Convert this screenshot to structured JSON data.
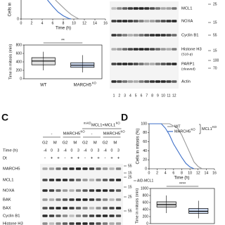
{
  "panel_a": {
    "survival": {
      "type": "line",
      "y_label": "Cells in",
      "x_label": "Time (h)",
      "xlim": [
        0,
        16
      ],
      "xticks": [
        0,
        2,
        4,
        6,
        8,
        10,
        12,
        14,
        16
      ],
      "ylim": [
        0,
        30
      ],
      "yticks": [
        0
      ],
      "series": [
        {
          "color": "#9a9a9a",
          "x": [
            6.5,
            7.5,
            8.5,
            9.5,
            10.5,
            11
          ],
          "values": [
            30,
            22,
            14,
            7,
            2,
            0
          ]
        },
        {
          "color": "#3d6fc8",
          "x": [
            5,
            6,
            7,
            8,
            9,
            9.5
          ],
          "values": [
            30,
            20,
            11,
            5,
            1,
            0
          ]
        }
      ]
    },
    "boxplot": {
      "type": "box",
      "y_label": "Time in mitosis (min)",
      "significance": "**",
      "ylim": [
        0,
        800
      ],
      "yticks": [
        0,
        200,
        400,
        600,
        800
      ],
      "groups": [
        {
          "label": "WT",
          "color": "#888888",
          "stats": [
            200,
            330,
            420,
            500,
            640
          ]
        },
        {
          "label": "MARCH5",
          "sup": "KO",
          "color": "#3d6fc8",
          "stats": [
            150,
            270,
            320,
            380,
            560
          ]
        }
      ]
    }
  },
  "panel_b": {
    "rows": [
      {
        "label": "MCL1"
      },
      {
        "label": "NOXA"
      },
      {
        "label": "Cyclin B1"
      },
      {
        "label": "Histone H3",
        "sublabel": "(S10-p)"
      },
      {
        "label": "PARP1",
        "sublabel": "(cleaved)"
      },
      {
        "label": "Actin"
      }
    ],
    "markers": [
      "25",
      "15",
      "55",
      "15",
      "100",
      "70"
    ],
    "lanes": [
      "1",
      "2",
      "3",
      "4",
      "5",
      "6",
      "7",
      "8",
      "9",
      "10",
      "11",
      "12"
    ]
  },
  "panel_c": {
    "letter": "C",
    "header": {
      "prefix_sup": "mAID",
      "text": "MCL1+MCL1",
      "sup": "KO"
    },
    "conditions": [
      {
        "label": "-"
      },
      {
        "label": "MARCH5",
        "sup": "KO"
      },
      {
        "label": "-"
      },
      {
        "label": "MARCH5",
        "sup": "KO"
      }
    ],
    "phases": [
      "G2",
      "M",
      "G2",
      "M",
      "G2",
      "M",
      "G2",
      "M"
    ],
    "time_label": "Time (h)",
    "times": [
      "-4",
      "0",
      "3",
      "-4",
      "0",
      "3",
      "-4",
      "0",
      "3",
      "-4",
      "0",
      "3"
    ],
    "dt_label": "Dt",
    "dt": [
      "-",
      "+",
      "+",
      "-",
      "+",
      "+",
      "-",
      "+",
      "+",
      "-",
      "+",
      "+"
    ],
    "rows": [
      "MARCH5",
      "MCL1",
      "NOXA",
      "BAK",
      "BAX",
      "Cyclin B1",
      "Histone H3"
    ],
    "markers": [
      "55",
      "15",
      "25",
      "15",
      "25",
      "55"
    ],
    "annotation": "AID-MCL1"
  },
  "panel_d": {
    "letter": "D",
    "legend_group": {
      "label": "MCL1",
      "sup": "KO"
    },
    "survival": {
      "type": "line",
      "y_label": "Cells in mitosis (%)",
      "x_label": "Time (h)",
      "xlim": [
        0,
        16
      ],
      "xticks": [
        0,
        2,
        4,
        6,
        8,
        10,
        12,
        14,
        16
      ],
      "ylim": [
        0,
        100
      ],
      "yticks": [
        0,
        20,
        40,
        60,
        80,
        100
      ],
      "series": [
        {
          "name": "WT",
          "color": "#9a9a9a",
          "x": [
            0,
            5,
            7,
            8,
            9,
            10,
            11,
            12,
            13
          ],
          "values": [
            100,
            100,
            90,
            75,
            55,
            35,
            15,
            5,
            0
          ]
        },
        {
          "name": "MARCH5",
          "sup": "KO",
          "color": "#3d6fc8",
          "x": [
            0,
            3,
            4,
            5,
            6,
            7,
            8,
            9,
            10,
            11
          ],
          "values": [
            100,
            100,
            90,
            75,
            55,
            40,
            25,
            12,
            4,
            0
          ]
        }
      ]
    },
    "boxplot": {
      "type": "box",
      "y_label": "Time in mitosis (min)",
      "significance": "****",
      "ylim": [
        0,
        1000
      ],
      "yticks": [
        0,
        200,
        400,
        600,
        800,
        1000
      ],
      "groups": [
        {
          "color": "#888888",
          "stats": [
            300,
            470,
            540,
            620,
            800
          ]
        },
        {
          "color": "#3d6fc8",
          "stats": [
            150,
            290,
            350,
            430,
            650
          ]
        }
      ]
    }
  }
}
